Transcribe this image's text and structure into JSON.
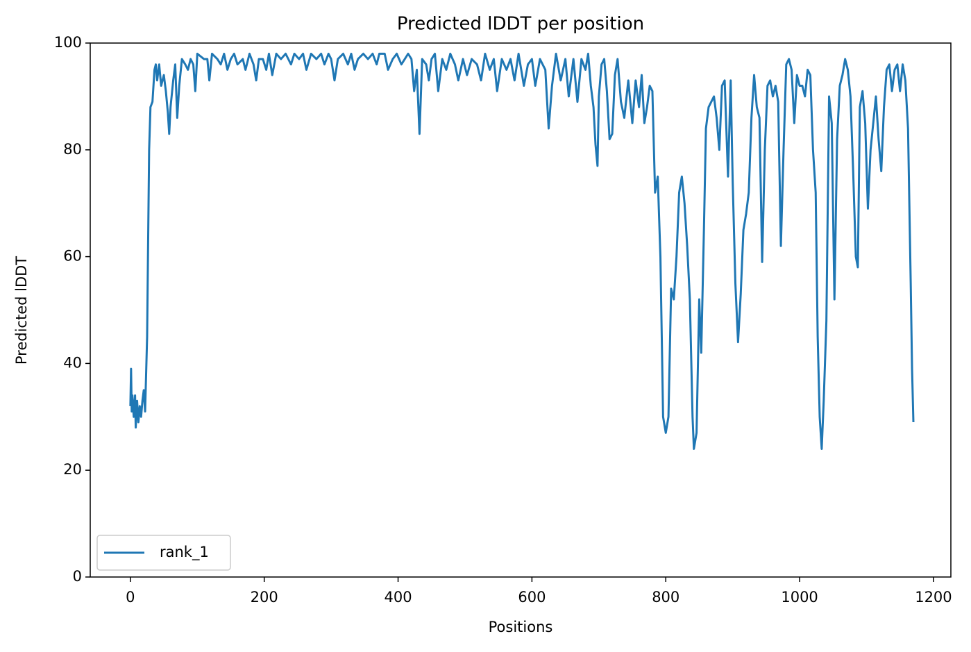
{
  "chart_data": {
    "type": "line",
    "title": "Predicted lDDT per position",
    "x_label": "Positions",
    "y_label": "Predicted lDDT",
    "xlim": [
      -60,
      1226
    ],
    "ylim": [
      0,
      100
    ],
    "xticks": [
      0,
      200,
      400,
      600,
      800,
      1000,
      1200
    ],
    "yticks": [
      0,
      20,
      40,
      60,
      80,
      100
    ],
    "legend_position": "lower left",
    "x": [
      0,
      1,
      2,
      3,
      5,
      7,
      8,
      10,
      12,
      14,
      16,
      18,
      20,
      22,
      25,
      28,
      30,
      33,
      36,
      38,
      40,
      43,
      46,
      50,
      53,
      56,
      58,
      60,
      64,
      67,
      70,
      73,
      77,
      82,
      86,
      90,
      94,
      97,
      100,
      110,
      115,
      118,
      122,
      130,
      135,
      140,
      145,
      150,
      155,
      160,
      168,
      172,
      178,
      184,
      188,
      192,
      198,
      203,
      207,
      212,
      218,
      225,
      232,
      240,
      245,
      252,
      258,
      263,
      270,
      278,
      285,
      290,
      296,
      300,
      305,
      310,
      318,
      325,
      330,
      335,
      340,
      348,
      355,
      362,
      368,
      372,
      380,
      385,
      392,
      398,
      405,
      410,
      415,
      420,
      424,
      428,
      432,
      436,
      442,
      446,
      450,
      455,
      460,
      466,
      472,
      478,
      485,
      490,
      497,
      503,
      510,
      518,
      524,
      530,
      537,
      543,
      548,
      555,
      562,
      568,
      574,
      580,
      588,
      594,
      600,
      605,
      612,
      620,
      625,
      630,
      636,
      643,
      650,
      655,
      662,
      668,
      674,
      680,
      684,
      688,
      692,
      695,
      698,
      700,
      704,
      708,
      712,
      716,
      720,
      724,
      728,
      733,
      738,
      744,
      750,
      755,
      760,
      764,
      768,
      772,
      776,
      780,
      784,
      788,
      792,
      796,
      800,
      804,
      808,
      812,
      816,
      820,
      824,
      828,
      832,
      836,
      840,
      842,
      846,
      850,
      853,
      857,
      860,
      864,
      868,
      872,
      876,
      880,
      884,
      888,
      893,
      897,
      900,
      904,
      908,
      912,
      916,
      920,
      924,
      928,
      932,
      936,
      940,
      944,
      948,
      952,
      956,
      960,
      964,
      968,
      972,
      976,
      980,
      984,
      988,
      992,
      996,
      1000,
      1004,
      1008,
      1012,
      1016,
      1020,
      1024,
      1027,
      1030,
      1033,
      1036,
      1040,
      1044,
      1048,
      1052,
      1056,
      1060,
      1064,
      1068,
      1072,
      1076,
      1080,
      1084,
      1087,
      1090,
      1094,
      1098,
      1102,
      1106,
      1110,
      1114,
      1118,
      1122,
      1126,
      1130,
      1134,
      1138,
      1142,
      1146,
      1150,
      1154,
      1158,
      1162,
      1166,
      1168,
      1170
    ],
    "series": [
      {
        "name": "rank_1",
        "color": "#1f77b4",
        "values": [
          32,
          39,
          31,
          34,
          30,
          34,
          28,
          33,
          29,
          32,
          30,
          33,
          35,
          31,
          45,
          80,
          88,
          89,
          95,
          96,
          93,
          96,
          92,
          94,
          91,
          87,
          83,
          88,
          93,
          96,
          86,
          92,
          97,
          96,
          95,
          97,
          96,
          91,
          98,
          97,
          97,
          93,
          98,
          97,
          96,
          98,
          95,
          97,
          98,
          96,
          97,
          95,
          98,
          96,
          93,
          97,
          97,
          95,
          98,
          94,
          98,
          97,
          98,
          96,
          98,
          97,
          98,
          95,
          98,
          97,
          98,
          96,
          98,
          97,
          93,
          97,
          98,
          96,
          98,
          95,
          97,
          98,
          97,
          98,
          96,
          98,
          98,
          95,
          97,
          98,
          96,
          97,
          98,
          97,
          91,
          95,
          83,
          97,
          96,
          93,
          97,
          98,
          91,
          97,
          95,
          98,
          96,
          93,
          97,
          94,
          97,
          96,
          93,
          98,
          95,
          97,
          91,
          97,
          95,
          97,
          93,
          98,
          92,
          96,
          97,
          92,
          97,
          95,
          84,
          92,
          98,
          93,
          97,
          90,
          97,
          89,
          97,
          95,
          98,
          92,
          88,
          81,
          77,
          90,
          96,
          97,
          91,
          82,
          83,
          94,
          97,
          89,
          86,
          93,
          85,
          93,
          88,
          94,
          85,
          88,
          92,
          91,
          72,
          75,
          60,
          30,
          27,
          30,
          54,
          52,
          60,
          72,
          75,
          70,
          62,
          52,
          30,
          24,
          27,
          52,
          42,
          65,
          84,
          88,
          89,
          90,
          86,
          80,
          92,
          93,
          75,
          93,
          74,
          55,
          44,
          53,
          65,
          68,
          72,
          86,
          94,
          88,
          86,
          59,
          80,
          92,
          93,
          90,
          92,
          89,
          62,
          80,
          96,
          97,
          95,
          85,
          94,
          92,
          92,
          90,
          95,
          94,
          80,
          72,
          45,
          30,
          24,
          33,
          48,
          90,
          85,
          52,
          82,
          92,
          94,
          97,
          95,
          90,
          76,
          60,
          58,
          88,
          91,
          85,
          69,
          80,
          85,
          90,
          82,
          76,
          88,
          95,
          96,
          91,
          95,
          96,
          91,
          96,
          93,
          84,
          55,
          39,
          29
        ]
      }
    ]
  }
}
